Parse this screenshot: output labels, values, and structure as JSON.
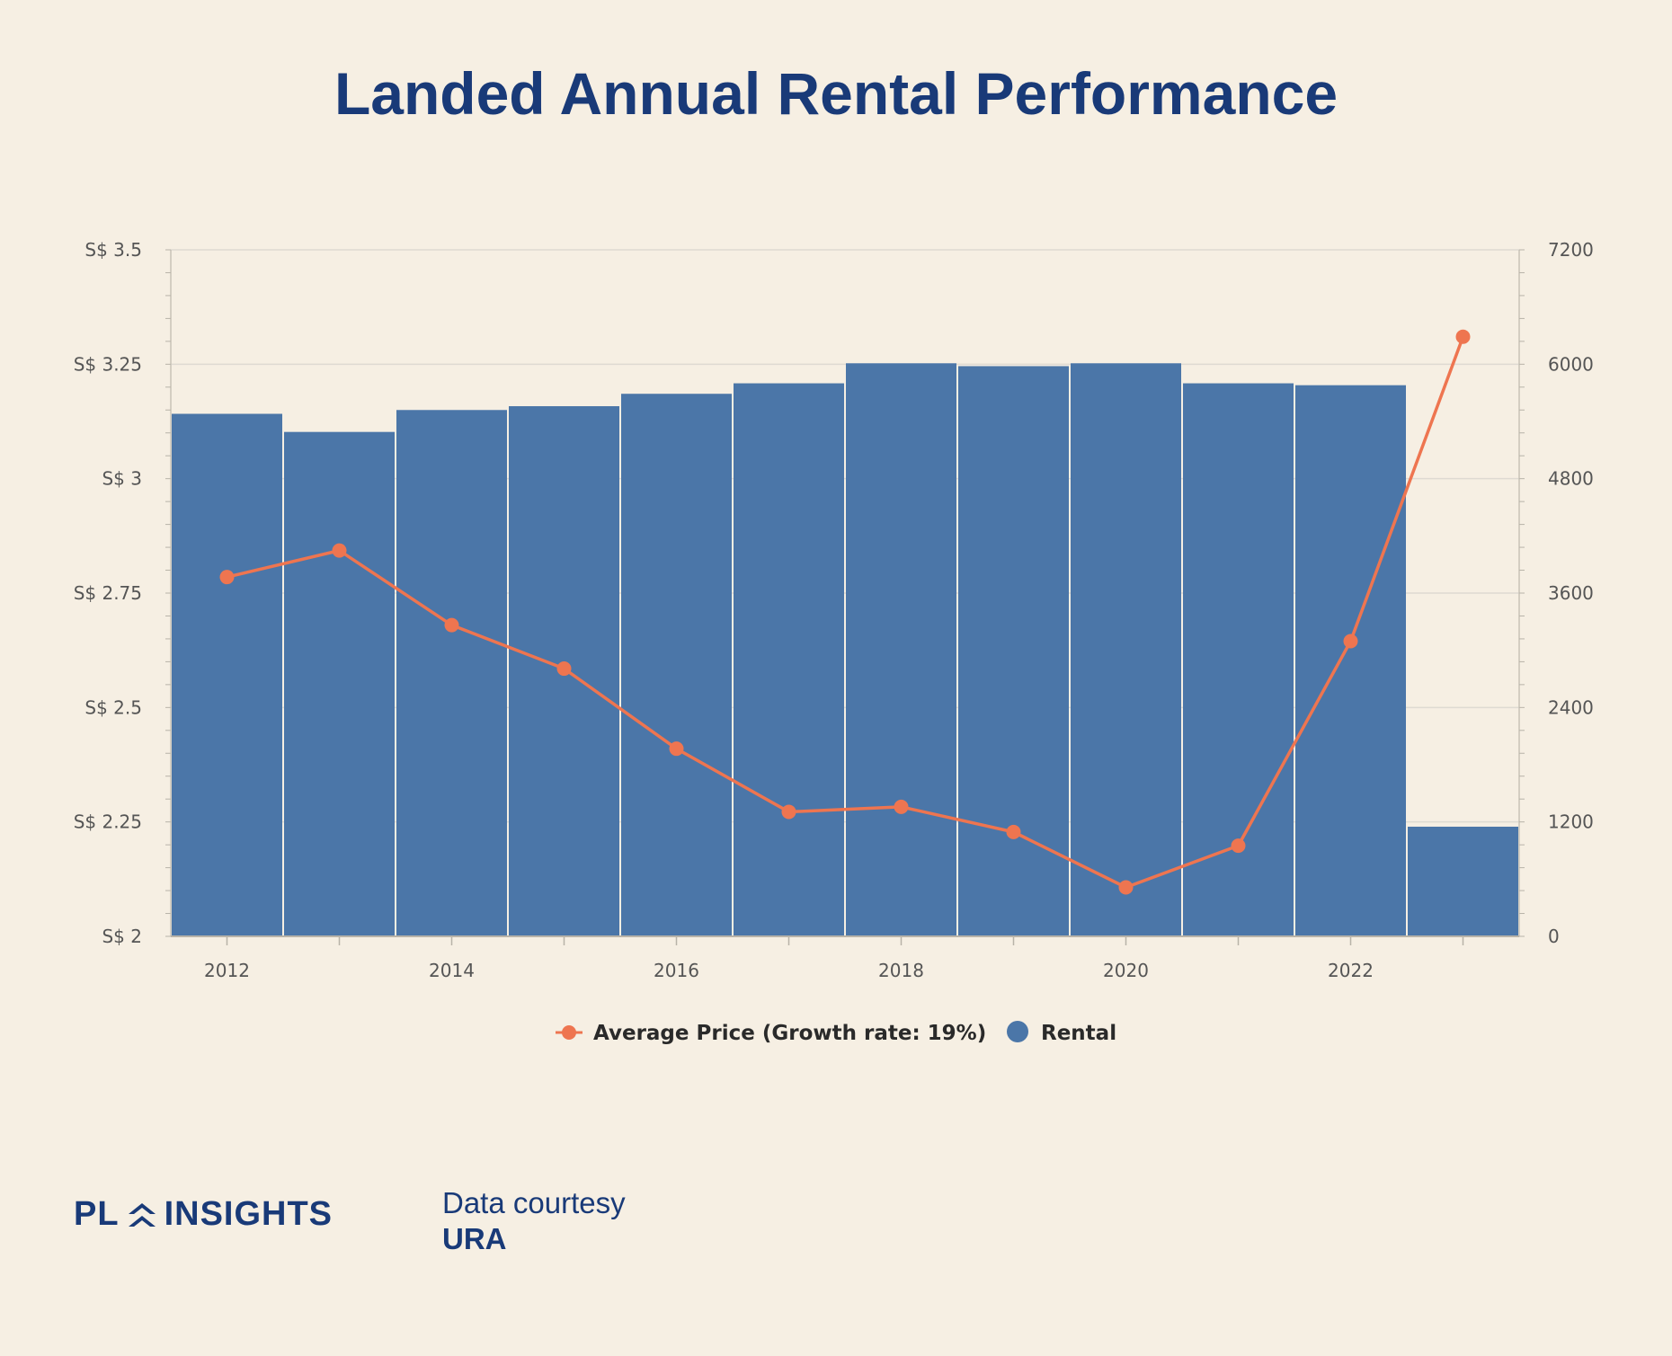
{
  "title": "Landed Annual Rental Performance",
  "brand": {
    "text_a": "PL",
    "text_b": "INSIGHTS"
  },
  "courtesy": {
    "line1": "Data courtesy",
    "line2": "URA"
  },
  "colors": {
    "bar": "#4b76a8",
    "line": "#ee7550",
    "title": "#193a78",
    "background": "#f6efe3"
  },
  "chart_data": {
    "type": "bar",
    "x": [
      2012,
      2013,
      2014,
      2015,
      2016,
      2017,
      2018,
      2019,
      2020,
      2021,
      2022,
      2023
    ],
    "x_tick_labels": [
      "2012",
      "2014",
      "2016",
      "2018",
      "2020",
      "2022"
    ],
    "series": [
      {
        "name": "Rental",
        "type": "bar",
        "axis": "right",
        "values": [
          5480,
          5290,
          5520,
          5560,
          5690,
          5800,
          6010,
          5980,
          6010,
          5800,
          5780,
          1150
        ]
      },
      {
        "name": "Average Price (Growth rate: 19%)",
        "type": "line",
        "axis": "left",
        "values": [
          2.785,
          2.843,
          2.68,
          2.585,
          2.41,
          2.272,
          2.283,
          2.228,
          2.107,
          2.198,
          2.645,
          3.31
        ]
      }
    ],
    "y_left": {
      "ylim": [
        2,
        3.5
      ],
      "ticks": [
        "S$ 2",
        "S$ 2.25",
        "S$ 2.5",
        "S$ 2.75",
        "S$ 3",
        "S$ 3.25",
        "S$ 3.5"
      ]
    },
    "y_right": {
      "ylim": [
        0,
        7200
      ],
      "ticks": [
        "0",
        "1200",
        "2400",
        "3600",
        "4800",
        "6000",
        "7200"
      ]
    },
    "grid": true,
    "legend": {
      "placement": "bottom-center",
      "items": [
        "Average Price (Growth rate: 19%)",
        "Rental"
      ]
    }
  }
}
